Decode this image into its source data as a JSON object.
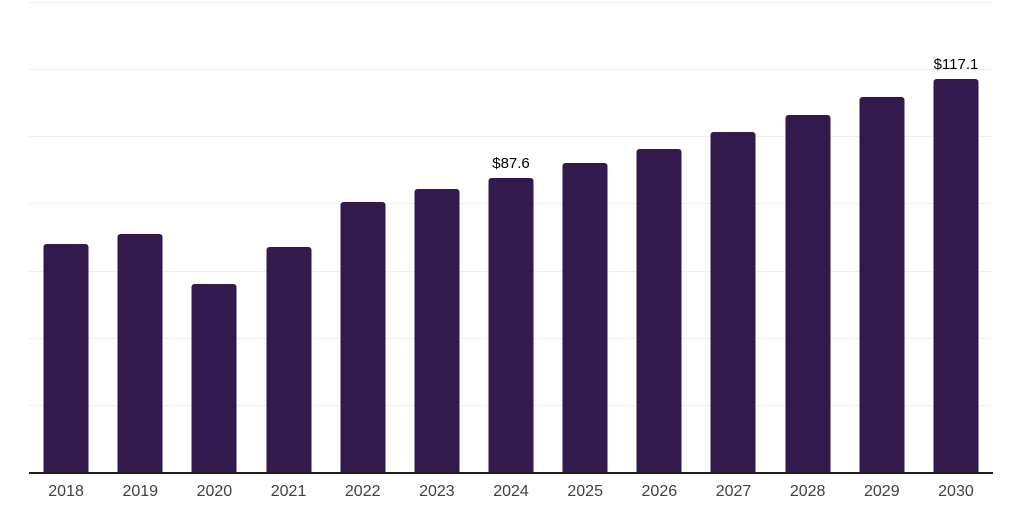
{
  "chart_data": {
    "type": "bar",
    "title": "",
    "xlabel": "",
    "ylabel": "",
    "categories": [
      "2018",
      "2019",
      "2020",
      "2021",
      "2022",
      "2023",
      "2024",
      "2025",
      "2026",
      "2027",
      "2028",
      "2029",
      "2030"
    ],
    "values": [
      68.0,
      70.8,
      56.1,
      67.0,
      80.4,
      84.2,
      87.6,
      92.1,
      96.1,
      101.2,
      106.4,
      111.8,
      117.1
    ],
    "data_labels": [
      {
        "category": "2024",
        "text": "$87.6"
      },
      {
        "category": "2030",
        "text": "$117.1"
      }
    ],
    "ylim": [
      0,
      140
    ],
    "grid_step": 20,
    "grid": true,
    "legend": false,
    "colors": {
      "bar": "#331a4d",
      "gridline": "#f0eef2",
      "axis": "#1f1f1f",
      "tick_label": "#404040",
      "data_label": "#000000",
      "background": "#ffffff"
    }
  }
}
